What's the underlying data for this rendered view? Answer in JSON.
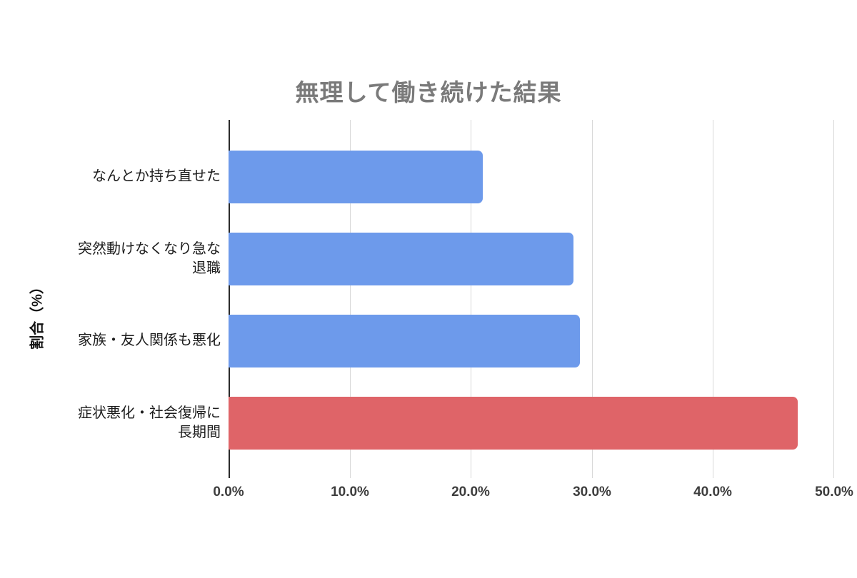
{
  "chart_data": {
    "type": "bar",
    "orientation": "horizontal",
    "title": "無理して働き続けた結果",
    "ylabel": "割合（%）",
    "xlabel": "",
    "categories": [
      "なんとか持ち直せた",
      "突然動けなくなり急な退職",
      "家族・友人関係も悪化",
      "症状悪化・社会復帰に長期間"
    ],
    "values": [
      21,
      28.5,
      29,
      47
    ],
    "unit": "%",
    "xlim": [
      0,
      50
    ],
    "xtick_labels": [
      "0.0%",
      "10.0%",
      "20.0%",
      "30.0%",
      "40.0%",
      "50.0%"
    ],
    "grid": true,
    "bar_colors": [
      "#6d9aeb",
      "#6d9aeb",
      "#6d9aeb",
      "#df6468"
    ],
    "colors": {
      "bar_default": "#6d9aeb",
      "bar_highlight": "#df6468",
      "title_text": "#7a7a7a",
      "category_text": "#1c1c1c",
      "tick_text": "#3d3d3d",
      "gridline": "#d8d8d8",
      "axis_line": "#2b2b2b",
      "background": "#ffffff"
    }
  }
}
